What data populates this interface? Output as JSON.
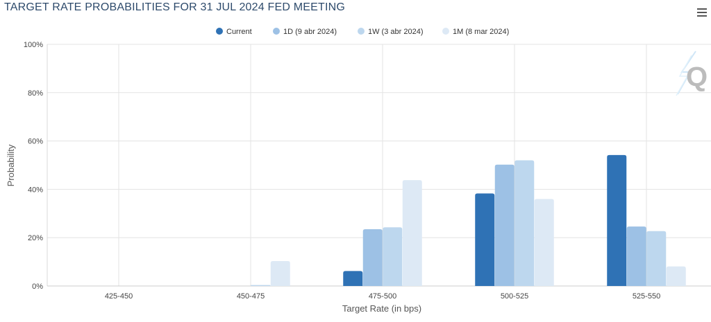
{
  "header": {
    "title": "TARGET RATE PROBABILITIES FOR 31 JUL 2024 FED MEETING",
    "menu_icon": "hamburger-menu-icon",
    "watermark_icon": "quikstrike-q-logo-icon"
  },
  "chart_data": {
    "type": "bar",
    "title": "TARGET RATE PROBABILITIES FOR 31 JUL 2024 FED MEETING",
    "xlabel": "Target Rate (in bps)",
    "ylabel": "Probability",
    "ylim": [
      0,
      100
    ],
    "yticks": [
      "0%",
      "20%",
      "40%",
      "60%",
      "80%",
      "100%"
    ],
    "categories": [
      "425-450",
      "450-475",
      "475-500",
      "500-525",
      "525-550"
    ],
    "legend_position": "top-center",
    "grid": true,
    "series": [
      {
        "name": "Current",
        "color": "#2f72b5",
        "values": [
          0,
          0,
          6.2,
          38.3,
          54.2
        ]
      },
      {
        "name": "1D (9 abr 2024)",
        "color": "#9dc1e5",
        "values": [
          0,
          0,
          23.5,
          50.2,
          24.6
        ]
      },
      {
        "name": "1W (3 abr 2024)",
        "color": "#bdd7ee",
        "values": [
          0,
          0.4,
          24.3,
          52.0,
          22.7
        ]
      },
      {
        "name": "1M (8 mar 2024)",
        "color": "#dde9f5",
        "values": [
          0,
          10.3,
          43.8,
          36.0,
          8.1
        ]
      }
    ]
  }
}
